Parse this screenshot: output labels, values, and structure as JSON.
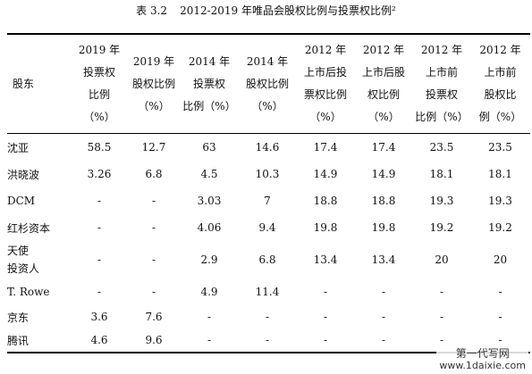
{
  "caption": {
    "label": "表 3.2",
    "title": "2012-2019 年唯品会股权比例与投票权比例²"
  },
  "table": {
    "headers": [
      [
        "股东"
      ],
      [
        "2019 年",
        "投票权",
        "比例",
        "（%）"
      ],
      [
        "2019 年",
        "股权比例",
        "（%）"
      ],
      [
        "2014 年",
        "投票权",
        "比例（%）"
      ],
      [
        "2014 年",
        "股权比例",
        "（%）"
      ],
      [
        "2012 年",
        "上市后投",
        "票权比例",
        "（%）"
      ],
      [
        "2012 年",
        "上市后股",
        "权比例",
        "（%）"
      ],
      [
        "2012 年",
        "上市前",
        "投票权",
        "比例（%）"
      ],
      [
        "2012 年",
        "上市前",
        "股权比",
        "例（%）"
      ]
    ],
    "rows": [
      {
        "name": "沈亚",
        "values": [
          "58.5",
          "12.7",
          "63",
          "14.6",
          "17.4",
          "17.4",
          "23.5",
          "23.5"
        ]
      },
      {
        "name": "洪晓波",
        "values": [
          "3.26",
          "6.8",
          "4.5",
          "10.3",
          "14.9",
          "14.9",
          "18.1",
          "18.1"
        ]
      },
      {
        "name": "DCM",
        "values": [
          "-",
          "-",
          "3.03",
          "7",
          "18.8",
          "18.8",
          "19.3",
          "19.3"
        ]
      },
      {
        "name": "红杉资本",
        "values": [
          "-",
          "-",
          "4.06",
          "9.4",
          "19.8",
          "19.8",
          "19.2",
          "19.2"
        ]
      },
      {
        "name": "天使\n投资人",
        "values": [
          "-",
          "-",
          "2.9",
          "6.8",
          "13.4",
          "13.4",
          "20",
          "20"
        ]
      },
      {
        "name": "T. Rowe",
        "values": [
          "-",
          "-",
          "4.9",
          "11.4",
          "-",
          "-",
          "-",
          "-"
        ]
      },
      {
        "name": "京东",
        "values": [
          "3.6",
          "7.6",
          "-",
          "-",
          "-",
          "-",
          "-",
          "-"
        ]
      },
      {
        "name": "腾讯",
        "values": [
          "4.6",
          "9.6",
          "-",
          "-",
          "-",
          "-",
          "-",
          "-"
        ]
      }
    ]
  },
  "watermark": {
    "line1": "第一代写网",
    "line2": "www.1daixie.com"
  }
}
